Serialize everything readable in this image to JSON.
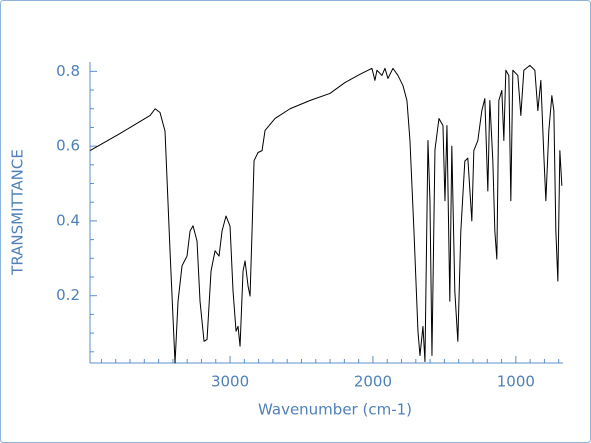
{
  "chart_data": {
    "type": "line",
    "xlabel": "Wavenumber (cm-1)",
    "ylabel": "TRANSMITTANCE",
    "color": "#000000",
    "xlim": [
      3980,
      670
    ],
    "ylim": [
      0.02,
      0.825
    ],
    "xticks": [
      3000,
      2000,
      1000
    ],
    "yticks": [
      0.2,
      0.4,
      0.6,
      0.8
    ],
    "xminorticks": [
      3900,
      3800,
      3700,
      3600,
      3500,
      3400,
      3300,
      3200,
      3100,
      2900,
      2800,
      2700,
      2600,
      2500,
      2400,
      2300,
      2200,
      2100,
      1900,
      1800,
      1700,
      1600,
      1500,
      1400,
      1300,
      1200,
      1100,
      900,
      800,
      700
    ],
    "yminorticks": [
      0.05,
      0.1,
      0.15,
      0.25,
      0.3,
      0.35,
      0.45,
      0.5,
      0.55,
      0.65,
      0.7,
      0.75
    ],
    "x": [
      3979,
      3769,
      3559,
      3524,
      3490,
      3455,
      3420,
      3385,
      3364,
      3336,
      3301,
      3280,
      3259,
      3231,
      3210,
      3182,
      3161,
      3133,
      3105,
      3077,
      3056,
      3028,
      3000,
      2979,
      2958,
      2944,
      2930,
      2909,
      2895,
      2874,
      2860,
      2846,
      2832,
      2804,
      2776,
      2755,
      2685,
      2580,
      2441,
      2301,
      2196,
      2091,
      2007,
      1986,
      1972,
      1937,
      1916,
      1895,
      1860,
      1825,
      1790,
      1762,
      1741,
      1713,
      1685,
      1671,
      1650,
      1636,
      1615,
      1601,
      1587,
      1566,
      1538,
      1510,
      1496,
      1482,
      1462,
      1448,
      1427,
      1406,
      1385,
      1357,
      1336,
      1308,
      1294,
      1266,
      1238,
      1217,
      1196,
      1182,
      1161,
      1147,
      1133,
      1119,
      1098,
      1084,
      1070,
      1049,
      1035,
      1021,
      986,
      965,
      944,
      902,
      867,
      846,
      825,
      804,
      790,
      769,
      748,
      734,
      720,
      706,
      692,
      678
    ],
    "values": [
      0.588,
      0.634,
      0.682,
      0.7,
      0.69,
      0.64,
      0.32,
      0.02,
      0.185,
      0.28,
      0.306,
      0.373,
      0.387,
      0.346,
      0.185,
      0.078,
      0.083,
      0.266,
      0.32,
      0.306,
      0.373,
      0.413,
      0.386,
      0.212,
      0.105,
      0.118,
      0.065,
      0.266,
      0.293,
      0.226,
      0.199,
      0.373,
      0.561,
      0.583,
      0.588,
      0.642,
      0.674,
      0.7,
      0.722,
      0.741,
      0.77,
      0.792,
      0.808,
      0.776,
      0.803,
      0.789,
      0.808,
      0.781,
      0.808,
      0.789,
      0.762,
      0.722,
      0.615,
      0.373,
      0.105,
      0.04,
      0.118,
      0.024,
      0.615,
      0.454,
      0.04,
      0.59,
      0.674,
      0.655,
      0.454,
      0.655,
      0.185,
      0.6,
      0.212,
      0.078,
      0.373,
      0.56,
      0.568,
      0.4,
      0.588,
      0.615,
      0.695,
      0.727,
      0.48,
      0.722,
      0.56,
      0.373,
      0.298,
      0.722,
      0.749,
      0.615,
      0.803,
      0.789,
      0.454,
      0.803,
      0.789,
      0.682,
      0.803,
      0.816,
      0.803,
      0.695,
      0.776,
      0.575,
      0.454,
      0.642,
      0.735,
      0.695,
      0.373,
      0.239,
      0.588,
      0.494
    ]
  }
}
